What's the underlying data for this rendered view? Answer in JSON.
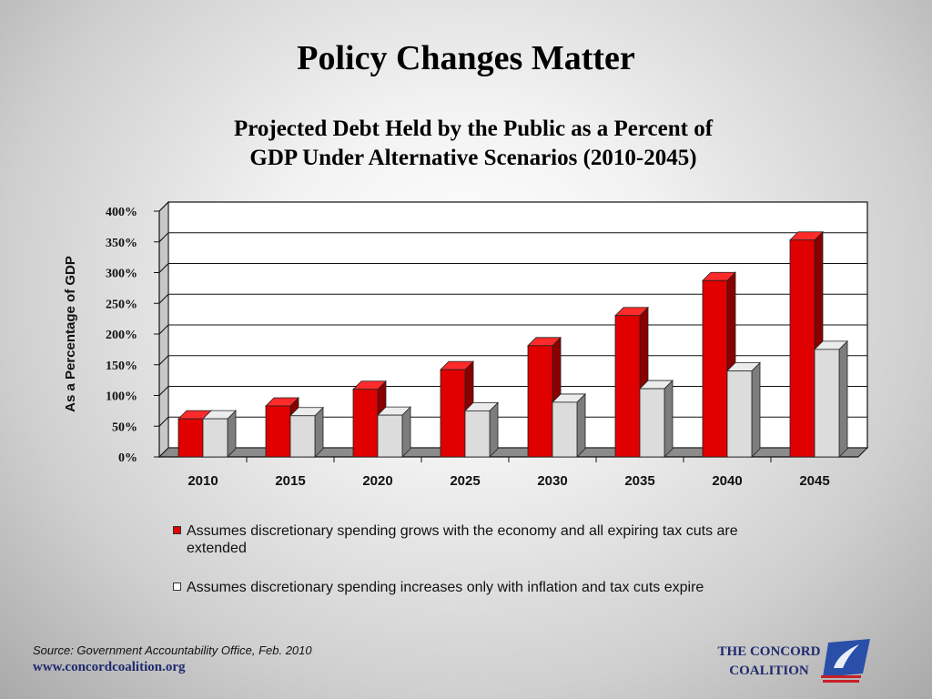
{
  "slide_title": "Policy Changes Matter",
  "chart_data": {
    "type": "bar",
    "title_lines": [
      "Projected Debt Held by the Public as a Percent of",
      "GDP Under Alternative Scenarios (2010-2045)"
    ],
    "ylabel": "As a Percentage of GDP",
    "xlabel": "",
    "categories": [
      "2010",
      "2015",
      "2020",
      "2025",
      "2030",
      "2035",
      "2040",
      "2045"
    ],
    "ylim": [
      0,
      400
    ],
    "yticks": [
      0,
      50,
      100,
      150,
      200,
      250,
      300,
      350,
      400
    ],
    "ytick_labels": [
      "0%",
      "50%",
      "100%",
      "150%",
      "200%",
      "250%",
      "300%",
      "350%",
      "400%"
    ],
    "grid": true,
    "legend_position": "bottom",
    "series": [
      {
        "name": "Assumes discretionary spending grows with the economy and all expiring tax cuts are extended",
        "values": [
          62,
          83,
          110,
          142,
          181,
          230,
          287,
          353
        ],
        "color": "#e00000"
      },
      {
        "name": "Assumes discretionary spending increases only with inflation and tax cuts expire",
        "values": [
          62,
          67,
          68,
          75,
          89,
          111,
          140,
          175
        ],
        "color": "#d9d9d9"
      }
    ]
  },
  "legend": {
    "item1": {
      "text_line1": "Assumes discretionary spending grows with the economy and all expiring tax cuts are",
      "text_line2": "extended",
      "color": "#e00000"
    },
    "item2": {
      "text": "Assumes discretionary spending increases only with inflation and tax cuts expire",
      "color": "#ffffff"
    }
  },
  "footer": {
    "source": "Source: Government Accountability Office, Feb. 2010",
    "url": "www.concordcoalition.org"
  },
  "logo": {
    "line1": "THE CONCORD",
    "line2": "COALITION",
    "icon": "concord-coalition-logo-icon"
  }
}
